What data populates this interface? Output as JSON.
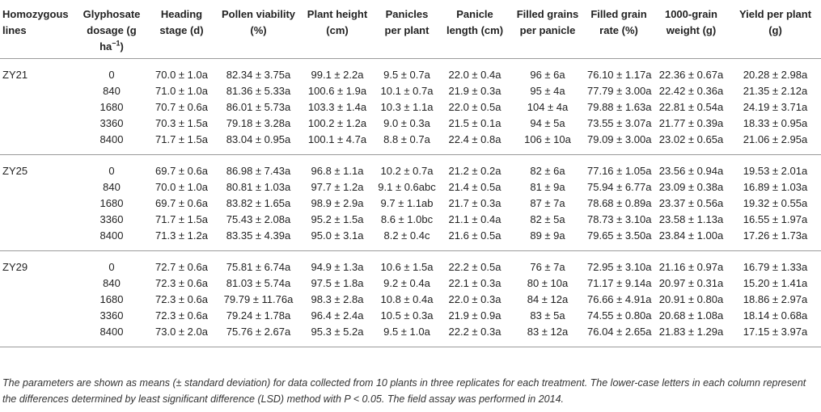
{
  "headers": {
    "line": "Homozygous lines",
    "dosage": "Glyphosate dosage (g ha",
    "dosage_sup": "−1",
    "dosage_end": ")",
    "heading": "Heading stage (d)",
    "pollen": "Pollen viability (%)",
    "height": "Plant height (cm)",
    "panicles": "Panicles per plant",
    "panicle_length": "Panicle length (cm)",
    "filled_grains": "Filled grains per panicle",
    "filled_rate": "Filled grain rate (%)",
    "grain_weight": "1000-grain weight (g)",
    "yield": "Yield per plant (g)"
  },
  "groups": [
    {
      "line": "ZY21",
      "rows": [
        [
          "0",
          "70.0 ± 1.0a",
          "82.34 ± 3.75a",
          "99.1 ± 2.2a",
          "9.5 ± 0.7a",
          "22.0 ± 0.4a",
          "96 ± 6a",
          "76.10 ± 1.17a",
          "22.36 ± 0.67a",
          "20.28 ± 2.98a"
        ],
        [
          "840",
          "71.0 ± 1.0a",
          "81.36 ± 5.33a",
          "100.6 ± 1.9a",
          "10.1 ± 0.7a",
          "21.9 ± 0.3a",
          "95 ± 4a",
          "77.79 ± 3.00a",
          "22.42 ± 0.36a",
          "21.35 ± 2.12a"
        ],
        [
          "1680",
          "70.7 ± 0.6a",
          "86.01 ± 5.73a",
          "103.3 ± 1.4a",
          "10.3 ± 1.1a",
          "22.0 ± 0.5a",
          "104 ± 4a",
          "79.88 ± 1.63a",
          "22.81 ± 0.54a",
          "24.19 ± 3.71a"
        ],
        [
          "3360",
          "70.3 ± 1.5a",
          "79.18 ± 3.28a",
          "100.2 ± 1.2a",
          "9.0 ± 0.3a",
          "21.5 ± 0.1a",
          "94 ± 5a",
          "73.55 ± 3.07a",
          "21.77 ± 0.39a",
          "18.33 ± 0.95a"
        ],
        [
          "8400",
          "71.7 ± 1.5a",
          "83.04 ± 0.95a",
          "100.1 ± 4.7a",
          "8.8 ± 0.7a",
          "22.4 ± 0.8a",
          "106 ± 10a",
          "79.09 ± 3.00a",
          "23.02 ± 0.65a",
          "21.06 ± 2.95a"
        ]
      ]
    },
    {
      "line": "ZY25",
      "rows": [
        [
          "0",
          "69.7 ± 0.6a",
          "86.98 ± 7.43a",
          "96.8 ± 1.1a",
          "10.2 ± 0.7a",
          "21.2 ± 0.2a",
          "82 ± 6a",
          "77.16 ± 1.05a",
          "23.56 ± 0.94a",
          "19.53 ± 2.01a"
        ],
        [
          "840",
          "70.0 ± 1.0a",
          "80.81 ± 1.03a",
          "97.7 ± 1.2a",
          "9.1 ± 0.6abc",
          "21.4 ± 0.5a",
          "81 ± 9a",
          "75.94 ± 6.77a",
          "23.09 ± 0.38a",
          "16.89 ± 1.03a"
        ],
        [
          "1680",
          "69.7 ± 0.6a",
          "83.82 ± 1.65a",
          "98.9 ± 2.9a",
          "9.7 ± 1.1ab",
          "21.7 ± 0.3a",
          "87 ± 7a",
          "78.68 ± 0.89a",
          "23.37 ± 0.56a",
          "19.32 ± 0.55a"
        ],
        [
          "3360",
          "71.7 ± 1.5a",
          "75.43 ± 2.08a",
          "95.2 ± 1.5a",
          "8.6 ± 1.0bc",
          "21.1 ± 0.4a",
          "82 ± 5a",
          "78.73 ± 3.10a",
          "23.58 ± 1.13a",
          "16.55 ± 1.97a"
        ],
        [
          "8400",
          "71.3 ± 1.2a",
          "83.35 ± 4.39a",
          "95.0 ± 3.1a",
          "8.2 ± 0.4c",
          "21.6 ± 0.5a",
          "89 ± 9a",
          "79.65 ± 3.50a",
          "23.84 ± 1.00a",
          "17.26 ± 1.73a"
        ]
      ]
    },
    {
      "line": "ZY29",
      "rows": [
        [
          "0",
          "72.7 ± 0.6a",
          "75.81 ± 6.74a",
          "94.9 ± 1.3a",
          "10.6 ± 1.5a",
          "22.2 ± 0.5a",
          "76 ± 7a",
          "72.95 ± 3.10a",
          "21.16 ± 0.97a",
          "16.79 ± 1.33a"
        ],
        [
          "840",
          "72.3 ± 0.6a",
          "81.03 ± 5.74a",
          "97.5 ± 1.8a",
          "9.2 ± 0.4a",
          "22.1 ± 0.3a",
          "80 ± 10a",
          "71.17 ± 9.14a",
          "20.97 ± 0.31a",
          "15.20 ± 1.41a"
        ],
        [
          "1680",
          "72.3 ± 0.6a",
          "79.79 ± 11.76a",
          "98.3 ± 2.8a",
          "10.8 ± 0.4a",
          "22.0 ± 0.3a",
          "84 ± 12a",
          "76.66 ± 4.91a",
          "20.91 ± 0.80a",
          "18.86 ± 2.97a"
        ],
        [
          "3360",
          "72.3 ± 0.6a",
          "79.24 ± 1.78a",
          "96.4 ± 2.4a",
          "10.5 ± 0.3a",
          "21.9 ± 0.9a",
          "83 ± 5a",
          "74.55 ± 0.80a",
          "20.68 ± 1.08a",
          "18.14 ± 0.68a"
        ],
        [
          "8400",
          "73.0 ± 2.0a",
          "75.76 ± 2.67a",
          "95.3 ± 5.2a",
          "9.5 ± 1.0a",
          "22.2 ± 0.3a",
          "83 ± 12a",
          "76.04 ± 2.65a",
          "21.83 ± 1.29a",
          "17.15 ± 3.97a"
        ]
      ]
    }
  ],
  "footnote": "The parameters are shown as means (± standard deviation) for data collected from 10 plants in three replicates for each treatment. The lower-case letters in each column represent the differences determined by least significant difference (LSD) method with P < 0.05. The field assay was performed in 2014."
}
